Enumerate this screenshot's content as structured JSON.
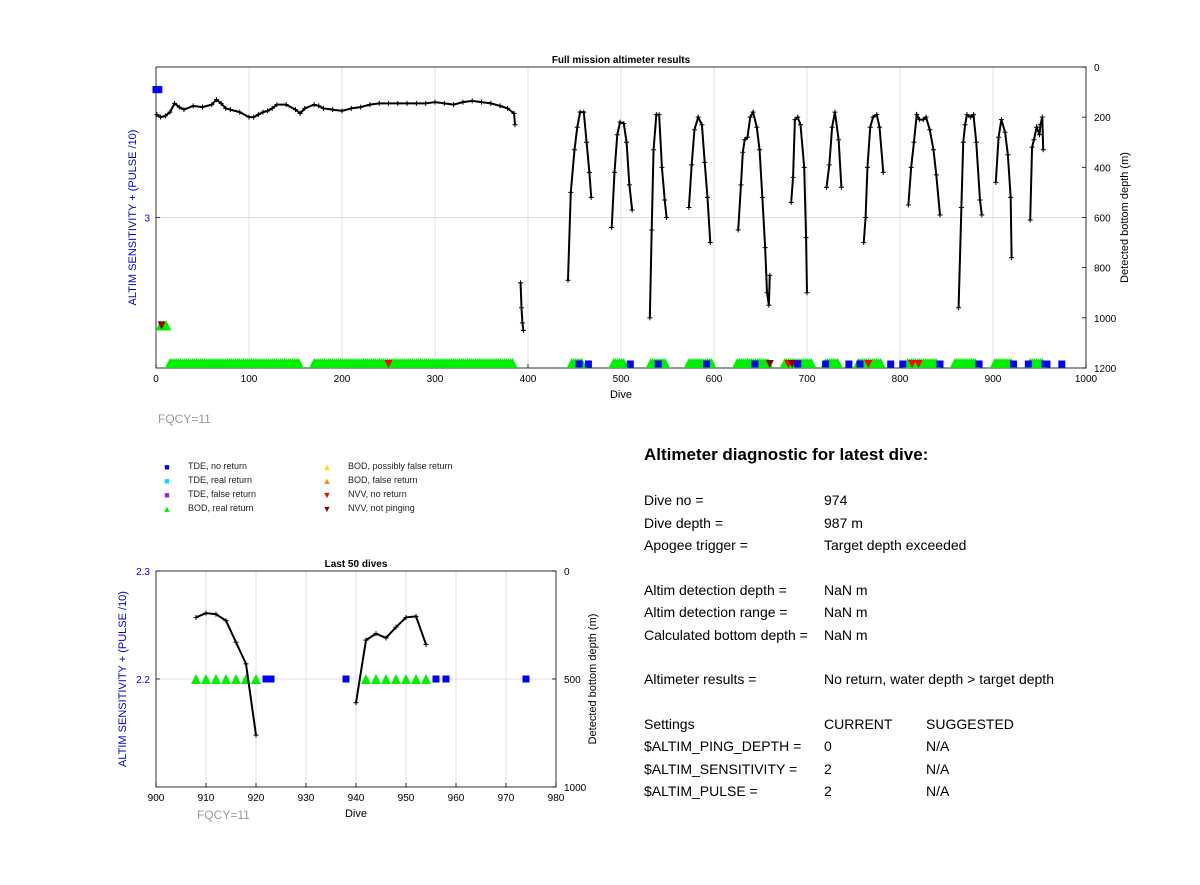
{
  "chart_data": [
    {
      "type": "scatter",
      "title": "Full mission altimeter results",
      "xlabel": "Dive",
      "ylabel_left": "ALTIM SENSITIVITY + (PULSE /10)",
      "ylabel_right": "Detected bottom depth (m)",
      "xlim": [
        0,
        1000
      ],
      "xticks": [
        "0",
        "100",
        "200",
        "300",
        "400",
        "500",
        "600",
        "700",
        "800",
        "900",
        "1000"
      ],
      "ylim_left": [
        0.0,
        6.0
      ],
      "yticks_left": [
        "3"
      ],
      "ylim_right": [
        1200,
        0
      ],
      "yticks_right": [
        "0",
        "200",
        "400",
        "600",
        "800",
        "1000",
        "1200"
      ],
      "grid": true,
      "depth_series": [
        [
          1,
          190
        ],
        [
          5,
          200
        ],
        [
          10,
          195
        ],
        [
          15,
          180
        ],
        [
          20,
          145
        ],
        [
          25,
          160
        ],
        [
          30,
          170
        ],
        [
          40,
          155
        ],
        [
          50,
          160
        ],
        [
          60,
          150
        ],
        [
          65,
          130
        ],
        [
          70,
          145
        ],
        [
          75,
          165
        ],
        [
          80,
          170
        ],
        [
          90,
          180
        ],
        [
          100,
          200
        ],
        [
          105,
          200
        ],
        [
          110,
          190
        ],
        [
          115,
          180
        ],
        [
          120,
          175
        ],
        [
          125,
          165
        ],
        [
          130,
          150
        ],
        [
          140,
          150
        ],
        [
          150,
          170
        ],
        [
          155,
          185
        ],
        [
          160,
          165
        ],
        [
          170,
          150
        ],
        [
          175,
          155
        ],
        [
          180,
          165
        ],
        [
          190,
          170
        ],
        [
          200,
          175
        ],
        [
          210,
          165
        ],
        [
          220,
          160
        ],
        [
          230,
          150
        ],
        [
          240,
          145
        ],
        [
          250,
          145
        ],
        [
          260,
          145
        ],
        [
          270,
          145
        ],
        [
          280,
          145
        ],
        [
          290,
          145
        ],
        [
          300,
          140
        ],
        [
          310,
          145
        ],
        [
          320,
          150
        ],
        [
          330,
          140
        ],
        [
          340,
          135
        ],
        [
          350,
          140
        ],
        [
          360,
          145
        ],
        [
          370,
          155
        ],
        [
          378,
          165
        ],
        [
          385,
          185
        ],
        [
          386,
          230
        ],
        null,
        [
          392,
          860
        ],
        [
          393,
          960
        ],
        [
          394,
          1020
        ],
        [
          395,
          1050
        ],
        null,
        [
          443,
          850
        ],
        [
          446,
          500
        ],
        [
          450,
          330
        ],
        [
          453,
          240
        ],
        [
          456,
          180
        ],
        [
          460,
          180
        ],
        [
          463,
          300
        ],
        [
          466,
          420
        ],
        [
          468,
          520
        ],
        null,
        [
          490,
          640
        ],
        [
          493,
          420
        ],
        [
          496,
          270
        ],
        [
          499,
          220
        ],
        [
          503,
          225
        ],
        [
          506,
          300
        ],
        [
          509,
          470
        ],
        [
          512,
          570
        ],
        null,
        [
          531,
          1000
        ],
        [
          533,
          650
        ],
        [
          535,
          330
        ],
        [
          538,
          190
        ],
        [
          541,
          190
        ],
        [
          544,
          400
        ],
        [
          547,
          530
        ],
        [
          549,
          600
        ],
        null,
        [
          573,
          560
        ],
        [
          576,
          390
        ],
        [
          579,
          250
        ],
        [
          583,
          200
        ],
        [
          587,
          230
        ],
        [
          590,
          380
        ],
        [
          593,
          520
        ],
        [
          596,
          700
        ],
        null,
        [
          626,
          650
        ],
        [
          629,
          470
        ],
        [
          631,
          340
        ],
        [
          633,
          290
        ],
        [
          636,
          280
        ],
        [
          639,
          200
        ],
        [
          642,
          180
        ],
        [
          646,
          240
        ],
        [
          649,
          330
        ],
        [
          652,
          520
        ],
        [
          655,
          720
        ],
        [
          657,
          900
        ],
        [
          659,
          950
        ],
        [
          660,
          830
        ],
        null,
        [
          683,
          540
        ],
        [
          685,
          440
        ],
        [
          687,
          210
        ],
        [
          690,
          200
        ],
        [
          693,
          230
        ],
        [
          697,
          400
        ],
        [
          699,
          680
        ],
        [
          700,
          900
        ],
        null,
        [
          721,
          480
        ],
        [
          724,
          390
        ],
        [
          727,
          240
        ],
        [
          730,
          180
        ],
        [
          734,
          290
        ],
        [
          737,
          480
        ],
        null,
        [
          761,
          700
        ],
        [
          763,
          600
        ],
        [
          765,
          400
        ],
        [
          768,
          240
        ],
        [
          771,
          200
        ],
        [
          775,
          190
        ],
        [
          778,
          240
        ],
        [
          782,
          420
        ],
        null,
        [
          809,
          550
        ],
        [
          812,
          400
        ],
        [
          815,
          300
        ],
        [
          818,
          190
        ],
        [
          821,
          210
        ],
        [
          825,
          210
        ],
        [
          828,
          200
        ],
        [
          832,
          250
        ],
        [
          836,
          330
        ],
        [
          839,
          430
        ],
        [
          843,
          590
        ],
        null,
        [
          863,
          960
        ],
        [
          866,
          560
        ],
        [
          868,
          300
        ],
        [
          870,
          230
        ],
        [
          872,
          190
        ],
        [
          876,
          200
        ],
        [
          879,
          190
        ],
        [
          882,
          300
        ],
        [
          886,
          530
        ],
        [
          888,
          590
        ],
        null,
        [
          903,
          460
        ],
        [
          906,
          280
        ],
        [
          909,
          210
        ],
        [
          913,
          260
        ],
        [
          916,
          350
        ],
        [
          919,
          520
        ],
        [
          920,
          760
        ],
        null,
        [
          940,
          610
        ],
        [
          942,
          320
        ],
        [
          944,
          290
        ],
        [
          947,
          240
        ],
        [
          950,
          270
        ],
        [
          951,
          230
        ],
        [
          953,
          200
        ],
        [
          954,
          330
        ]
      ],
      "markers": {
        "tde_no_return": [
          [
            0,
            5.55
          ],
          [
            1,
            5.55
          ],
          [
            2,
            5.55
          ],
          [
            3,
            5.55
          ],
          [
            455,
            0.0
          ],
          [
            465,
            0.0
          ],
          [
            510,
            0.0
          ],
          [
            540,
            0.0
          ],
          [
            592,
            0.0
          ],
          [
            644,
            0.0
          ],
          [
            690,
            0.0
          ],
          [
            720,
            0.0
          ],
          [
            745,
            0.0
          ],
          [
            757,
            0.0
          ],
          [
            790,
            0.0
          ],
          [
            803,
            0.0
          ],
          [
            843,
            0.0
          ],
          [
            885,
            0.0
          ],
          [
            922,
            0.0
          ],
          [
            938,
            0.0
          ],
          [
            956,
            0.0
          ],
          [
            958,
            0.0
          ],
          [
            974,
            0.0
          ]
        ],
        "bod_real_return_runs": [
          [
            15,
            155
          ],
          [
            170,
            385
          ],
          [
            447,
            458
          ],
          [
            492,
            503
          ],
          [
            532,
            548
          ],
          [
            573,
            598
          ],
          [
            625,
            660
          ],
          [
            676,
            706
          ],
          [
            720,
            734
          ],
          [
            755,
            781
          ],
          [
            808,
            840
          ],
          [
            859,
            882
          ],
          [
            902,
            920
          ],
          [
            940,
            955
          ]
        ],
        "bod_real_return_top": [
          [
            5,
            0.85
          ],
          [
            8,
            0.85
          ],
          [
            11,
            0.85
          ]
        ],
        "nvv_no_return": [
          [
            250,
            0.0
          ],
          [
            680,
            0.0
          ],
          [
            690,
            0.0
          ],
          [
            766,
            0.0
          ],
          [
            813,
            0.0
          ],
          [
            820,
            0.0
          ]
        ],
        "nvv_not_pinging": [
          [
            6,
            0.85
          ],
          [
            660,
            0.0
          ],
          [
            684,
            0.0
          ]
        ]
      },
      "footer": "FQCY=11"
    },
    {
      "type": "scatter",
      "title": "Last 50 dives",
      "xlabel": "Dive",
      "ylabel_left": "ALTIM SENSITIVITY + (PULSE /10)",
      "ylabel_right": "Detected bottom depth (m)",
      "xlim": [
        900,
        980
      ],
      "xticks": [
        "900",
        "910",
        "920",
        "930",
        "940",
        "950",
        "960",
        "970",
        "980"
      ],
      "ylim_left": [
        2.1,
        2.3
      ],
      "yticks_left": [
        "2.3",
        "2.2"
      ],
      "ylim_right": [
        1000,
        0
      ],
      "yticks_right": [
        "0",
        "500",
        "1000"
      ],
      "grid": true,
      "depth_series": [
        [
          908,
          215
        ],
        [
          910,
          195
        ],
        [
          912,
          200
        ],
        [
          914,
          230
        ],
        [
          916,
          330
        ],
        [
          918,
          430
        ],
        [
          920,
          760
        ],
        null,
        [
          940,
          610
        ],
        [
          942,
          320
        ],
        [
          944,
          290
        ],
        [
          946,
          310
        ],
        [
          948,
          260
        ],
        [
          950,
          215
        ],
        [
          952,
          210
        ],
        [
          954,
          340
        ]
      ],
      "markers": {
        "bod_real_return": [
          [
            908,
            2.2
          ],
          [
            910,
            2.2
          ],
          [
            912,
            2.2
          ],
          [
            914,
            2.2
          ],
          [
            916,
            2.2
          ],
          [
            918,
            2.2
          ],
          [
            920,
            2.2
          ],
          [
            942,
            2.2
          ],
          [
            944,
            2.2
          ],
          [
            946,
            2.2
          ],
          [
            948,
            2.2
          ],
          [
            950,
            2.2
          ],
          [
            952,
            2.2
          ],
          [
            954,
            2.2
          ]
        ],
        "tde_no_return": [
          [
            922,
            2.2
          ],
          [
            923,
            2.2
          ],
          [
            938,
            2.2
          ],
          [
            956,
            2.2
          ],
          [
            958,
            2.2
          ],
          [
            974,
            2.2
          ]
        ]
      },
      "footer": "FQCY=11"
    }
  ],
  "legend": [
    {
      "label": "TDE, no return",
      "symbol": "square",
      "color": "#0000ff"
    },
    {
      "label": "TDE, real return",
      "symbol": "square",
      "color": "#00d8ff"
    },
    {
      "label": "TDE, false return",
      "symbol": "square",
      "color": "#8a2be2"
    },
    {
      "label": "BOD, real return",
      "symbol": "triangle-up",
      "color": "#00ee00"
    },
    {
      "label": "BOD, possibly false return",
      "symbol": "triangle-up",
      "color": "#ffd700"
    },
    {
      "label": "BOD, false return",
      "symbol": "triangle-up",
      "color": "#ff8c00"
    },
    {
      "label": "NVV, no return",
      "symbol": "triangle-down",
      "color": "#ff0000"
    },
    {
      "label": "NVV, not pinging",
      "symbol": "triangle-down",
      "color": "#8b0000"
    }
  ],
  "diagnostic": {
    "title": "Altimeter diagnostic for latest dive:",
    "dive_no_label": "Dive no =",
    "dive_no": "974",
    "dive_depth_label": "Dive depth =",
    "dive_depth": "987 m",
    "apogee_label": "Apogee trigger =",
    "apogee": "Target depth exceeded",
    "detect_depth_label": "Altim detection depth =",
    "detect_depth": "NaN m",
    "detect_range_label": "Altim detection range =",
    "detect_range": "NaN m",
    "calc_depth_label": "Calculated bottom depth =",
    "calc_depth": "NaN m",
    "results_label": "Altimeter results =",
    "results": "No return, water depth > target depth",
    "settings_label": "Settings",
    "current_label": "CURRENT",
    "suggested_label": "SUGGESTED",
    "ping_depth_label": "$ALTIM_PING_DEPTH =",
    "ping_depth_current": "0",
    "ping_depth_suggested": "N/A",
    "sensitivity_label": "$ALTIM_SENSITIVITY =",
    "sensitivity_current": "2",
    "sensitivity_suggested": "N/A",
    "pulse_label": "$ALTIM_PULSE =",
    "pulse_current": "2",
    "pulse_suggested": "N/A"
  },
  "colors": {
    "axis_left": "#0000c8",
    "grid": "#e0e0e0",
    "footer": "#9a9a9a"
  }
}
